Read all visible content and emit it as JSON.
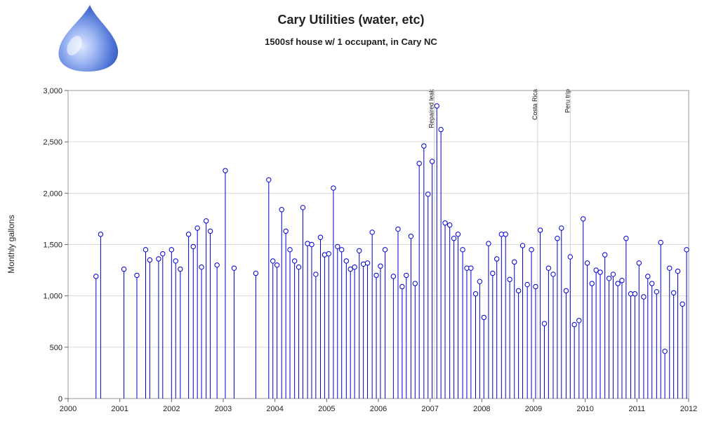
{
  "chart_data": {
    "type": "scatter",
    "style": "needle",
    "title": "Cary Utilities (water, etc)",
    "subtitle": "1500sf house w/ 1 occupant, in Cary NC",
    "ylabel": "Monthly gallons",
    "xlabel": "",
    "xlim": [
      2000,
      2012
    ],
    "ylim": [
      0,
      3000
    ],
    "x_ticks": [
      "2000",
      "2001",
      "2002",
      "2003",
      "2004",
      "2005",
      "2006",
      "2007",
      "2008",
      "2009",
      "2010",
      "2011",
      "2012"
    ],
    "y_ticks": [
      "0",
      "500",
      "1,000",
      "1,500",
      "2,000",
      "2,500",
      "3,000"
    ],
    "grid": true,
    "marker_color": "#0000cc",
    "annotations": [
      {
        "x": 2007.08,
        "label": "Repaired leak"
      },
      {
        "x": 2009.08,
        "label": "Costa Rica"
      },
      {
        "x": 2009.71,
        "label": "Peru trip"
      }
    ],
    "series": [
      {
        "points": [
          [
            2000.54,
            1190
          ],
          [
            2000.63,
            1600
          ],
          [
            2001.08,
            1260
          ],
          [
            2001.33,
            1200
          ],
          [
            2001.5,
            1450
          ],
          [
            2001.58,
            1350
          ],
          [
            2001.75,
            1360
          ],
          [
            2001.83,
            1410
          ],
          [
            2002.0,
            1450
          ],
          [
            2002.08,
            1340
          ],
          [
            2002.17,
            1260
          ],
          [
            2002.33,
            1600
          ],
          [
            2002.42,
            1480
          ],
          [
            2002.5,
            1660
          ],
          [
            2002.58,
            1280
          ],
          [
            2002.67,
            1730
          ],
          [
            2002.75,
            1630
          ],
          [
            2002.88,
            1300
          ],
          [
            2003.04,
            2220
          ],
          [
            2003.21,
            1270
          ],
          [
            2003.63,
            1220
          ],
          [
            2003.88,
            2130
          ],
          [
            2003.96,
            1340
          ],
          [
            2004.04,
            1300
          ],
          [
            2004.13,
            1840
          ],
          [
            2004.21,
            1630
          ],
          [
            2004.29,
            1450
          ],
          [
            2004.38,
            1340
          ],
          [
            2004.46,
            1280
          ],
          [
            2004.54,
            1860
          ],
          [
            2004.63,
            1510
          ],
          [
            2004.71,
            1500
          ],
          [
            2004.79,
            1210
          ],
          [
            2004.88,
            1570
          ],
          [
            2004.96,
            1400
          ],
          [
            2005.04,
            1410
          ],
          [
            2005.13,
            2050
          ],
          [
            2005.21,
            1480
          ],
          [
            2005.29,
            1450
          ],
          [
            2005.38,
            1340
          ],
          [
            2005.46,
            1260
          ],
          [
            2005.54,
            1280
          ],
          [
            2005.63,
            1440
          ],
          [
            2005.71,
            1310
          ],
          [
            2005.79,
            1320
          ],
          [
            2005.88,
            1620
          ],
          [
            2005.96,
            1200
          ],
          [
            2006.04,
            1290
          ],
          [
            2006.13,
            1450
          ],
          [
            2006.29,
            1190
          ],
          [
            2006.38,
            1650
          ],
          [
            2006.46,
            1090
          ],
          [
            2006.54,
            1200
          ],
          [
            2006.63,
            1580
          ],
          [
            2006.71,
            1120
          ],
          [
            2006.79,
            2290
          ],
          [
            2006.88,
            2460
          ],
          [
            2006.96,
            1990
          ],
          [
            2007.04,
            2310
          ],
          [
            2007.13,
            2850
          ],
          [
            2007.21,
            2620
          ],
          [
            2007.29,
            1710
          ],
          [
            2007.38,
            1690
          ],
          [
            2007.46,
            1560
          ],
          [
            2007.54,
            1600
          ],
          [
            2007.63,
            1450
          ],
          [
            2007.71,
            1270
          ],
          [
            2007.79,
            1270
          ],
          [
            2007.88,
            1020
          ],
          [
            2007.96,
            1140
          ],
          [
            2008.04,
            790
          ],
          [
            2008.13,
            1510
          ],
          [
            2008.21,
            1220
          ],
          [
            2008.29,
            1360
          ],
          [
            2008.38,
            1600
          ],
          [
            2008.46,
            1600
          ],
          [
            2008.54,
            1160
          ],
          [
            2008.63,
            1330
          ],
          [
            2008.71,
            1050
          ],
          [
            2008.79,
            1490
          ],
          [
            2008.88,
            1110
          ],
          [
            2008.96,
            1450
          ],
          [
            2009.04,
            1090
          ],
          [
            2009.13,
            1640
          ],
          [
            2009.21,
            730
          ],
          [
            2009.29,
            1270
          ],
          [
            2009.38,
            1210
          ],
          [
            2009.46,
            1560
          ],
          [
            2009.54,
            1660
          ],
          [
            2009.63,
            1050
          ],
          [
            2009.71,
            1380
          ],
          [
            2009.79,
            720
          ],
          [
            2009.88,
            760
          ],
          [
            2009.96,
            1750
          ],
          [
            2010.04,
            1320
          ],
          [
            2010.13,
            1120
          ],
          [
            2010.21,
            1250
          ],
          [
            2010.29,
            1230
          ],
          [
            2010.38,
            1400
          ],
          [
            2010.46,
            1170
          ],
          [
            2010.54,
            1210
          ],
          [
            2010.63,
            1120
          ],
          [
            2010.71,
            1150
          ],
          [
            2010.79,
            1560
          ],
          [
            2010.88,
            1020
          ],
          [
            2010.96,
            1020
          ],
          [
            2011.04,
            1320
          ],
          [
            2011.13,
            990
          ],
          [
            2011.21,
            1190
          ],
          [
            2011.29,
            1120
          ],
          [
            2011.38,
            1040
          ],
          [
            2011.46,
            1520
          ],
          [
            2011.54,
            460
          ],
          [
            2011.63,
            1270
          ],
          [
            2011.71,
            1030
          ],
          [
            2011.79,
            1240
          ],
          [
            2011.88,
            920
          ],
          [
            2011.96,
            1450
          ]
        ]
      }
    ]
  }
}
